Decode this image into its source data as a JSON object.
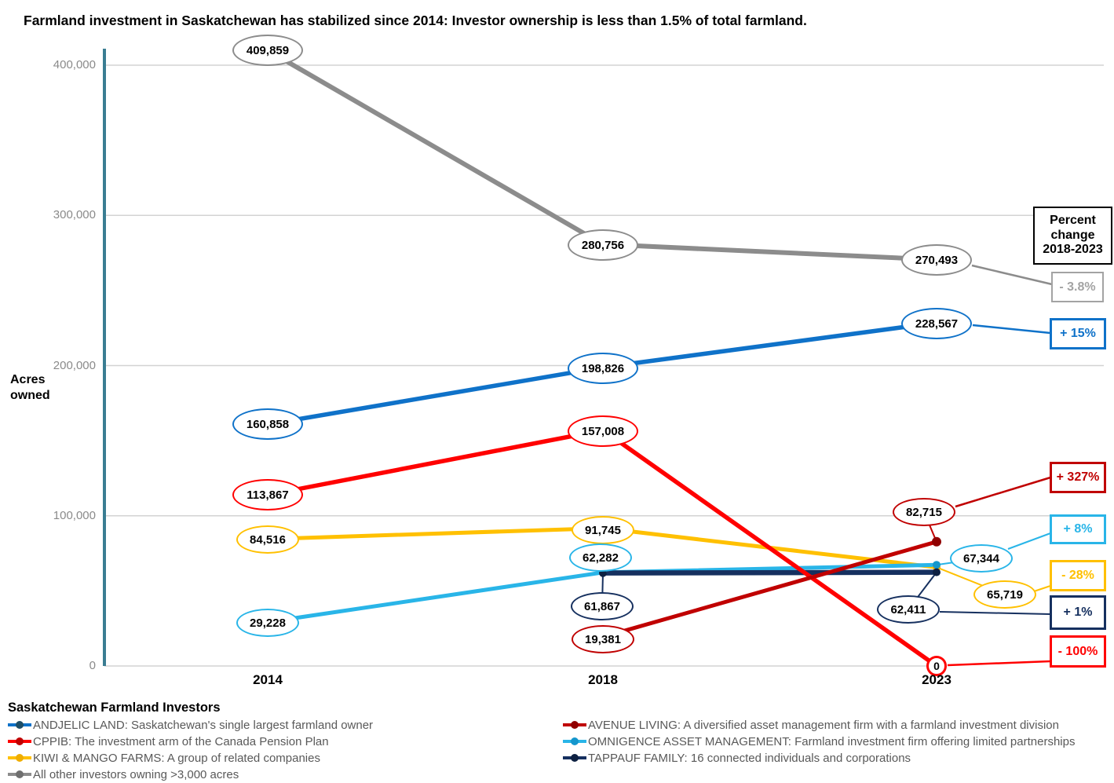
{
  "title": "Farmland investment in Saskatchewan has stabilized since 2014: Investor ownership is less than 1.5% of total farmland.",
  "y_axis": {
    "label": "Acres owned",
    "tick_labels": [
      "400,000",
      "300,000",
      "200,000",
      "100,000",
      "0"
    ]
  },
  "x_axis": {
    "labels": [
      "2014",
      "2018",
      "2023"
    ]
  },
  "percent_column": {
    "header": "Percent change 2018-2023"
  },
  "chart_data": {
    "type": "line",
    "x": [
      "2014",
      "2018",
      "2023"
    ],
    "ylabel": "Acres owned",
    "ylim": [
      0,
      420000
    ],
    "yticks": [
      400000,
      300000,
      200000,
      100000,
      0
    ],
    "grid": "horizontal",
    "series": [
      {
        "id": "all-other-investors",
        "name": "All other investors owning >3,000 acres",
        "color": "#8C8C8C",
        "marker_color": "#6F6F6F",
        "percent_color": "#A3A3A3",
        "values": [
          409859,
          280756,
          270493
        ],
        "point_labels": [
          "409,859",
          "280,756",
          "270,493"
        ],
        "percent_change": "- 3.8%"
      },
      {
        "id": "andjelic-land",
        "name": "ANDJELIC LAND",
        "color": "#0F72C9",
        "marker_color": "#1E4E67",
        "values": [
          160858,
          198826,
          228567
        ],
        "point_labels": [
          "160,858",
          "198,826",
          "228,567"
        ],
        "percent_change": "+ 15%"
      },
      {
        "id": "cppib",
        "name": "CPPIB",
        "color": "#FF0000",
        "marker_color": "#C00000",
        "values": [
          113867,
          157008,
          0
        ],
        "point_labels": [
          "113,867",
          "157,008",
          "0"
        ],
        "percent_change": "- 100%"
      },
      {
        "id": "kiwi-mango",
        "name": "KIWI & MANGO FARMS",
        "color": "#FFC000",
        "marker_color": "#EFAD00",
        "values": [
          84516,
          91745,
          65719
        ],
        "point_labels": [
          "84,516",
          "91,745",
          "65,719"
        ],
        "percent_change": "- 28%"
      },
      {
        "id": "omnigence",
        "name": "OMNIGENCE ASSET MANAGEMENT",
        "color": "#29B5E8",
        "marker_color": "#1496CC",
        "values": [
          29228,
          62282,
          67344
        ],
        "point_labels": [
          "29,228",
          "62,282",
          "67,344"
        ],
        "percent_change": "+ 8%"
      },
      {
        "id": "tappauf",
        "name": "TAPPAUF FAMILY",
        "color": "#16305F",
        "marker_color": "#0E2142",
        "values": [
          null,
          61867,
          62411
        ],
        "point_labels": [
          null,
          "61,867",
          "62,411"
        ],
        "percent_change": "+ 1%"
      },
      {
        "id": "avenue-living",
        "name": "AVENUE LIVING",
        "color": "#C00000",
        "marker_color": "#900000",
        "values": [
          null,
          19381,
          82715
        ],
        "point_labels": [
          null,
          "19,381",
          "82,715"
        ],
        "percent_change": "+ 327%"
      }
    ]
  },
  "legend": {
    "title": "Saskatchewan Farmland Investors",
    "columns": [
      {
        "items": [
          {
            "series": "andjelic-land",
            "label": "ANDJELIC LAND: Saskatchewan's single largest farmland owner"
          },
          {
            "series": "cppib",
            "label": "CPPIB: The investment arm of the Canada Pension Plan"
          },
          {
            "series": "kiwi-mango",
            "label": "KIWI & MANGO FARMS: A group of related companies"
          },
          {
            "series": "all-other-investors",
            "label": "All other investors owning >3,000 acres"
          }
        ]
      },
      {
        "items": [
          {
            "series": "avenue-living",
            "label": "AVENUE LIVING: A diversified asset management firm with a farmland investment division"
          },
          {
            "series": "omnigence",
            "label": "OMNIGENCE ASSET MANAGEMENT: Farmland investment firm offering limited partnerships"
          },
          {
            "series": "tappauf",
            "label": "TAPPAUF FAMILY: 16 connected individuals and corporations"
          }
        ]
      }
    ]
  }
}
